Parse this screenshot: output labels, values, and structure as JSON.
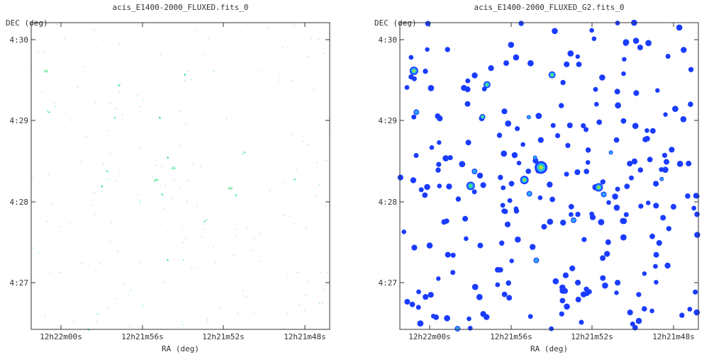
{
  "panels": [
    {
      "title": "acis_E1400-2000_FLUXED.fits_0",
      "xlabel": "RA (deg)",
      "ylabel": "DEC (deg)",
      "xticks": [
        "12h22m00s",
        "12h21m56s",
        "12h21m52s",
        "12h21m48s"
      ],
      "yticks": [
        "4:30",
        "4:29",
        "4:28",
        "4:27"
      ],
      "style": "sparse"
    },
    {
      "title": "acis_E1400-2000_FLUXED_G2.fits_0",
      "xlabel": "RA (deg)",
      "ylabel": "DEC (deg)",
      "xticks": [
        "12h22m00s",
        "12h21m56s",
        "12h21m52s",
        "12h21m48s"
      ],
      "yticks": [
        "4:30",
        "4:29",
        "4:28",
        "4:27"
      ],
      "style": "smoothed"
    }
  ],
  "colors": {
    "frame": "#333333",
    "blob_low": "#1a3cff",
    "blob_mid": "#2aa8ff",
    "blob_high": "#3ee68a",
    "blob_peak": "#e6d21a",
    "sparse_dot": "#2ad6b4"
  }
}
